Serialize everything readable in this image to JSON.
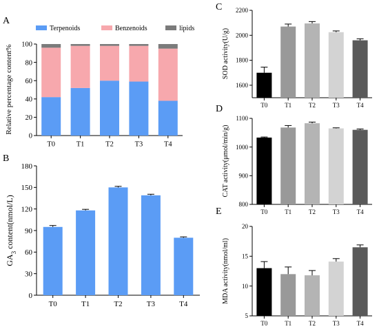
{
  "panels": {
    "A": {
      "letter": "A",
      "chart_data": {
        "type": "bar",
        "stacked": true,
        "categories": [
          "T0",
          "T1",
          "T2",
          "T3",
          "T4"
        ],
        "series": [
          {
            "name": "Terpenoids",
            "color": "#5b9cf5",
            "values": [
              42,
              52,
              60,
              59,
              38
            ]
          },
          {
            "name": "Benzenoids",
            "color": "#f7a8ad",
            "values": [
              54,
              46,
              38,
              39,
              57
            ]
          },
          {
            "name": "lipids",
            "color": "#7b7b7b",
            "values": [
              4,
              2,
              2,
              2,
              5
            ]
          }
        ],
        "xlabel": "",
        "ylabel": "Relative percentage content%",
        "ylim": [
          0,
          100
        ],
        "yticks": [
          0,
          20,
          40,
          60,
          80,
          100
        ],
        "legend": "top"
      }
    },
    "B": {
      "letter": "B",
      "chart_data": {
        "type": "bar",
        "categories": [
          "T0",
          "T1",
          "T2",
          "T3",
          "T4"
        ],
        "values": [
          95,
          118,
          150,
          139,
          80
        ],
        "errors": [
          2,
          1.5,
          1.5,
          1.5,
          1.2
        ],
        "color": "#5b9cf5",
        "xlabel": "",
        "ylabel_prefix": "GA",
        "ylabel_sub": "3",
        "ylabel_suffix": " content(nmol/L)",
        "ylim": [
          0,
          180
        ],
        "yticks": [
          0,
          30,
          60,
          90,
          120,
          150,
          180
        ]
      }
    },
    "C": {
      "letter": "C",
      "chart_data": {
        "type": "bar",
        "categories": [
          "T0",
          "T1",
          "T2",
          "T3",
          "T4"
        ],
        "values": [
          1700,
          2070,
          2095,
          2025,
          1960
        ],
        "errors": [
          45,
          20,
          15,
          10,
          12
        ],
        "colors": [
          "#000000",
          "#999999",
          "#b4b4b4",
          "#d3d3d3",
          "#5a5a5a"
        ],
        "xlabel": "",
        "ylabel": "SOD activity(U/g)",
        "ylim": [
          1500,
          2200
        ],
        "yticks": [
          1600,
          1800,
          2000,
          2200
        ]
      }
    },
    "D": {
      "letter": "D",
      "chart_data": {
        "type": "bar",
        "categories": [
          "T0",
          "T1",
          "T2",
          "T3",
          "T4"
        ],
        "values": [
          1033,
          1068,
          1083,
          1065,
          1060
        ],
        "errors": [
          2,
          7,
          4,
          2,
          3
        ],
        "colors": [
          "#000000",
          "#999999",
          "#b4b4b4",
          "#d3d3d3",
          "#5a5a5a"
        ],
        "xlabel": "",
        "ylabel": "CAT activity(μmol/min/g)",
        "ylim": [
          800,
          1100
        ],
        "yticks": [
          800,
          900,
          1000,
          1100
        ]
      }
    },
    "E": {
      "letter": "E",
      "chart_data": {
        "type": "bar",
        "categories": [
          "T0",
          "T1",
          "T2",
          "T3",
          "T4"
        ],
        "values": [
          13,
          12,
          11.8,
          14.1,
          16.5
        ],
        "errors": [
          1.1,
          1.2,
          0.8,
          0.5,
          0.4
        ],
        "colors": [
          "#000000",
          "#999999",
          "#b4b4b4",
          "#d3d3d3",
          "#5a5a5a"
        ],
        "xlabel": "",
        "ylabel": "MDA activity(nmol/ml)",
        "ylim": [
          5,
          20
        ],
        "yticks": [
          5,
          10,
          15,
          20
        ]
      }
    }
  }
}
